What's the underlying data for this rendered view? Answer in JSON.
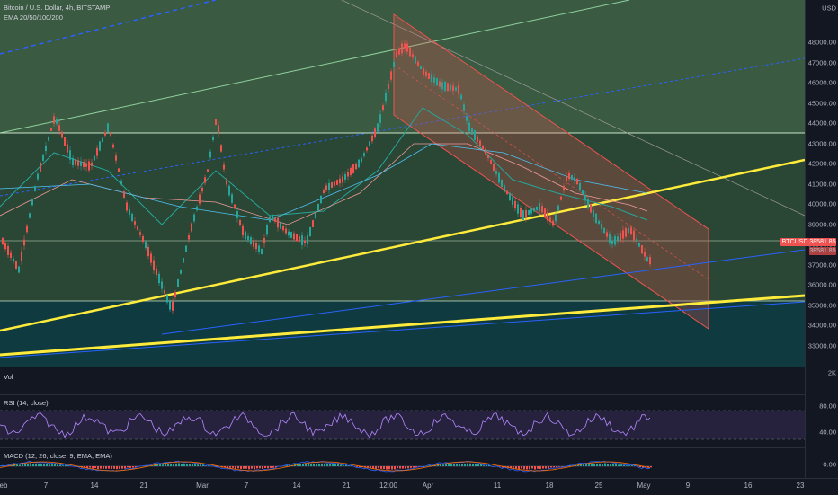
{
  "main": {
    "title": "Bitcoin / U.S. Dollar, 4h, BITSTAMP",
    "indicator": "EMA 20/50/100/200",
    "currency": "USD",
    "price_ticks": [
      "48000.00",
      "47000.00",
      "46000.00",
      "45000.00",
      "44000.00",
      "43000.00",
      "42000.00",
      "41000.00",
      "40000.00",
      "39000.00",
      "38000.00",
      "37000.00",
      "36000.00",
      "35000.00",
      "34000.00",
      "33000.00"
    ],
    "symbol_tag": "BTCUSD",
    "price_tag": "38581.85",
    "price_tag2": "38581.85"
  },
  "volume": {
    "label": "Vol",
    "scale": "2K"
  },
  "rsi": {
    "label": "RSI (14, close)",
    "ticks": [
      "80.00",
      "40.00"
    ]
  },
  "macd": {
    "label": "MACD (12, 26, close, 9, EMA, EMA)",
    "ticks": [
      "0.00"
    ]
  },
  "time_axis": [
    "eb",
    "7",
    "14",
    "21",
    "Mar",
    "7",
    "14",
    "21",
    "12:00",
    "Apr",
    "11",
    "18",
    "25",
    "May",
    "9",
    "16",
    "23"
  ],
  "colors": {
    "up": "#26a69a",
    "down": "#ef5350",
    "trend": "#ffeb3b",
    "channel": "#ef5350",
    "bg": "#131722"
  }
}
